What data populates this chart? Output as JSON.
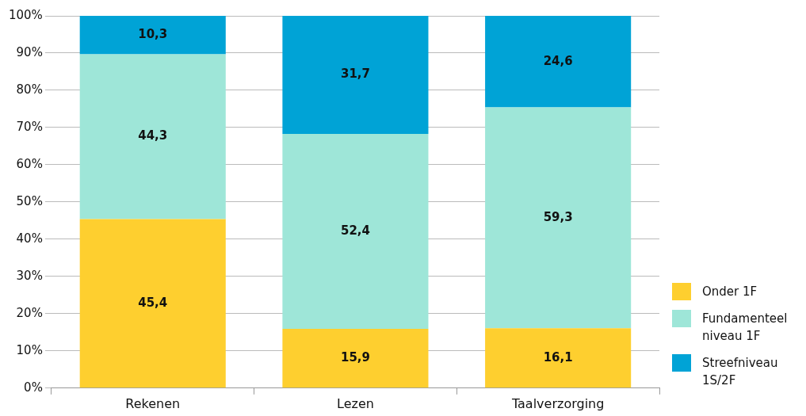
{
  "chart_data": {
    "type": "bar",
    "stacked": true,
    "categories": [
      "Rekenen",
      "Lezen",
      "Taalverzorging"
    ],
    "series": [
      {
        "name": "Onder 1F",
        "color": "#fecf2f",
        "values": [
          45.4,
          15.9,
          16.1
        ],
        "value_labels": [
          "45,4",
          "15,9",
          "16,1"
        ]
      },
      {
        "name": "Fundamenteel niveau 1F",
        "color": "#9ee6d8",
        "values": [
          44.3,
          52.4,
          59.3
        ],
        "value_labels": [
          "44,3",
          "52,4",
          "59,3"
        ]
      },
      {
        "name": "Streefniveau 1S/2F",
        "color": "#00a3d6",
        "values": [
          10.3,
          31.7,
          24.6
        ],
        "value_labels": [
          "10,3",
          "31,7",
          "24,6"
        ]
      }
    ],
    "ylim": [
      0,
      100
    ],
    "yticks": [
      {
        "value": 0,
        "label": "0%"
      },
      {
        "value": 10,
        "label": "10%"
      },
      {
        "value": 20,
        "label": "20%"
      },
      {
        "value": 30,
        "label": "30%"
      },
      {
        "value": 40,
        "label": "40%"
      },
      {
        "value": 50,
        "label": "50%"
      },
      {
        "value": 60,
        "label": "60%"
      },
      {
        "value": 70,
        "label": "70%"
      },
      {
        "value": 80,
        "label": "80%"
      },
      {
        "value": 90,
        "label": "90%"
      },
      {
        "value": 100,
        "label": "100%"
      }
    ],
    "grid": "y",
    "legend": "bottom right"
  }
}
